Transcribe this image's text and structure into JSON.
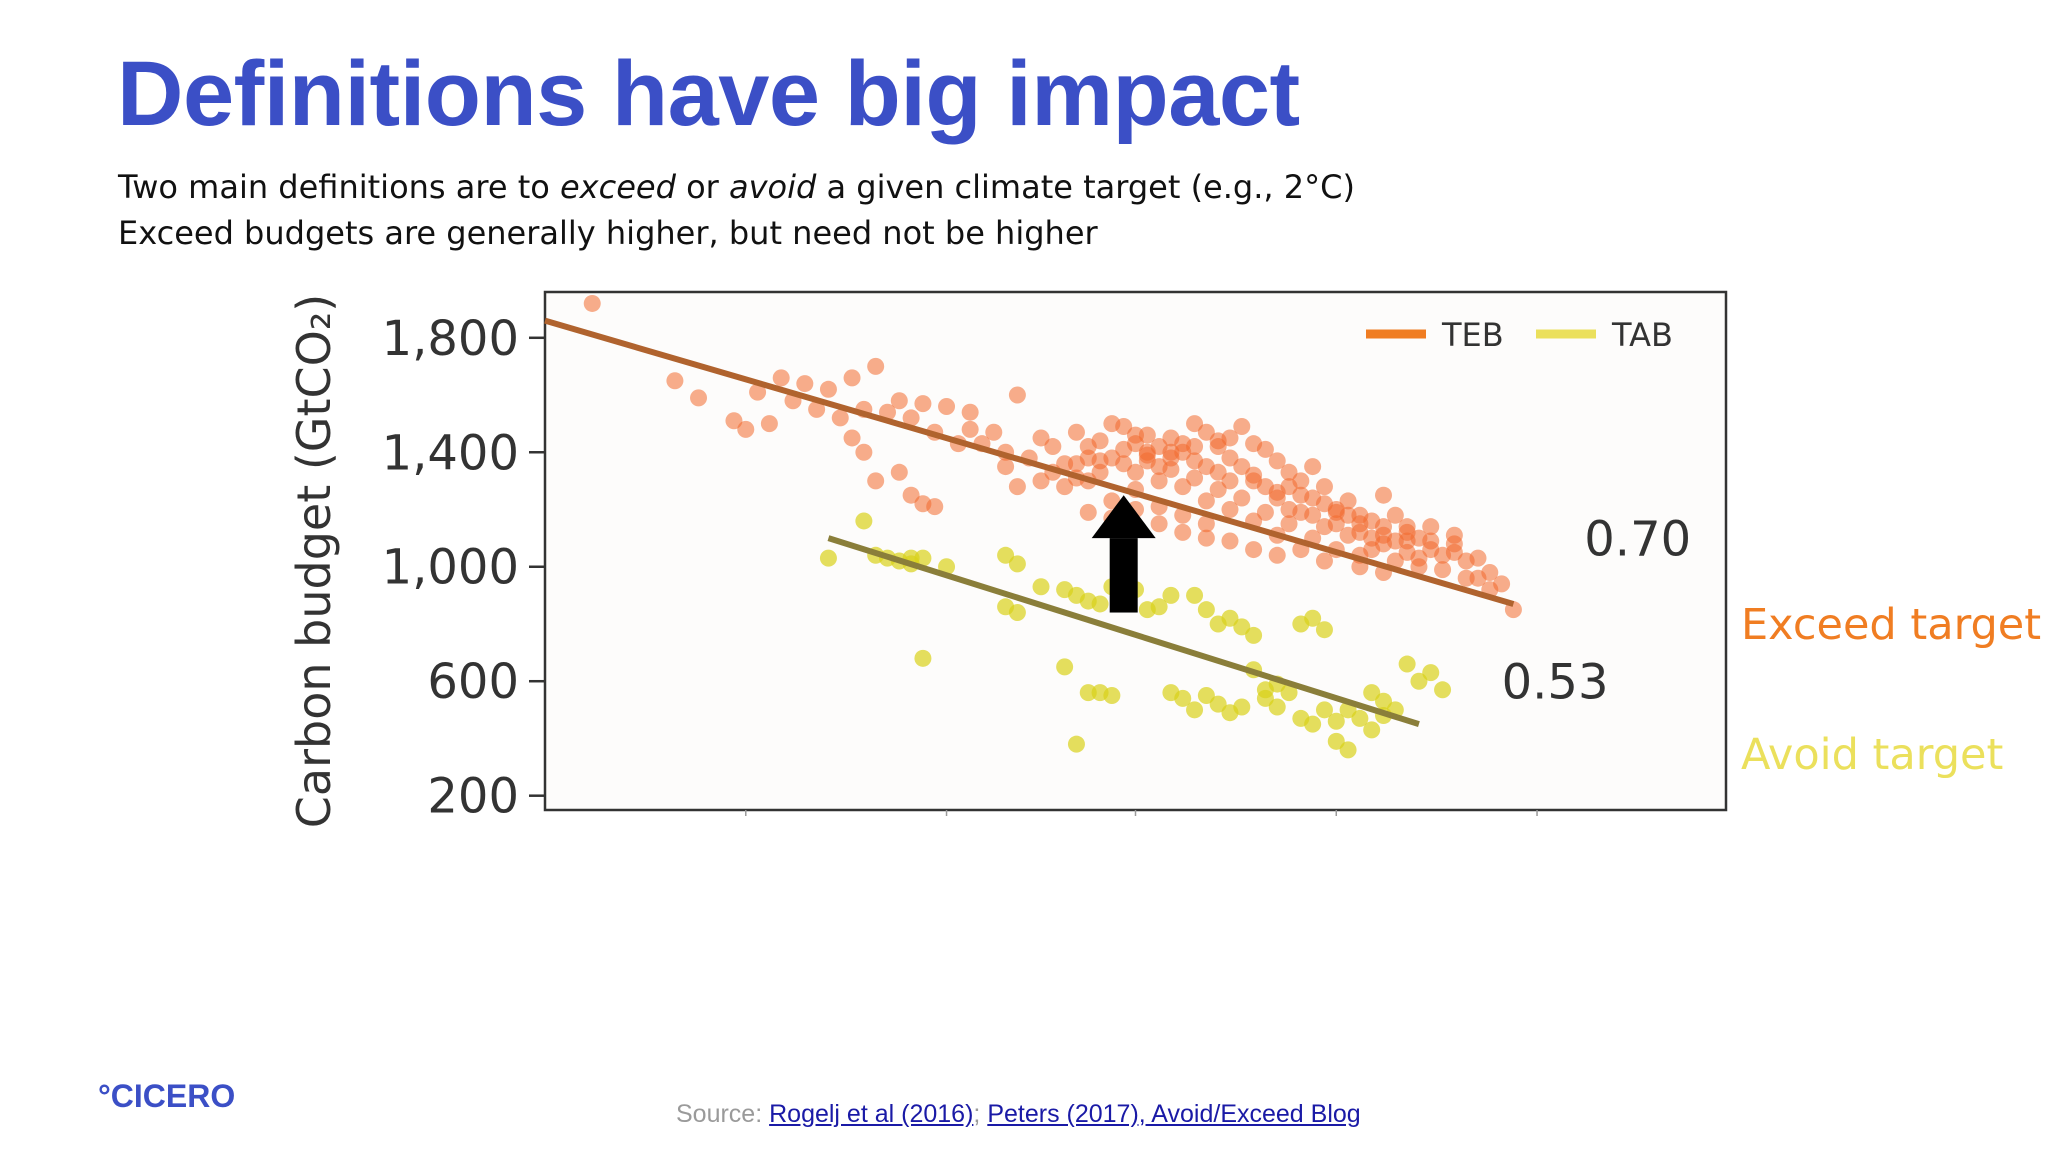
{
  "slide": {
    "title": "Definitions have big impact",
    "subtitle_line1": {
      "part1": "Two main definitions are to ",
      "em1": "exceed",
      "part2": " or ",
      "em2": "avoid",
      "part3": " a given climate target (e.g., 2°C)"
    },
    "subtitle_line2": "Exceed budgets are generally higher, but need not be higher",
    "label_exceed": "Exceed target",
    "label_avoid": "Avoid target",
    "logo": "°CICERO",
    "source_prefix": "Source: ",
    "source_link1": "Rogelj et al (2016)",
    "source_sep": "; ",
    "source_link2": "Peters (2017), Avoid/Exceed Blog"
  },
  "colors": {
    "title": "#3b4fc6",
    "teb": "#f07d22",
    "tab": "#ebe05c",
    "teb_points": "#f26a2e",
    "tab_points": "#d8d21a",
    "teb_fit": "#b0632e",
    "tab_fit": "#8a7e3a",
    "arrow": "#000000"
  },
  "chart_data": {
    "type": "scatter",
    "ylabel": "Carbon budget (GtCO₂)",
    "ylim": [
      150,
      1960
    ],
    "yticks": [
      "1,800",
      "1,400",
      "1,000",
      "600",
      "200"
    ],
    "ytick_values": [
      1800,
      1400,
      1000,
      600,
      200
    ],
    "xlim": [
      0,
      100
    ],
    "legend_position": "top-right",
    "annotations": [
      {
        "text": "0.70",
        "series": "TEB",
        "x": 88,
        "y": 1040
      },
      {
        "text": "0.53",
        "series": "TAB",
        "x": 81,
        "y": 540
      }
    ],
    "series": [
      {
        "name": "TEB",
        "fit": {
          "x": [
            0,
            82
          ],
          "y": [
            1860,
            870
          ]
        },
        "points": [
          [
            4,
            1920
          ],
          [
            11,
            1650
          ],
          [
            13,
            1590
          ],
          [
            18,
            1610
          ],
          [
            20,
            1660
          ],
          [
            22,
            1640
          ],
          [
            24,
            1620
          ],
          [
            26,
            1660
          ],
          [
            28,
            1700
          ],
          [
            30,
            1580
          ],
          [
            32,
            1570
          ],
          [
            34,
            1560
          ],
          [
            36,
            1540
          ],
          [
            40,
            1600
          ],
          [
            36,
            1480
          ],
          [
            38,
            1470
          ],
          [
            27,
            1550
          ],
          [
            29,
            1540
          ],
          [
            31,
            1520
          ],
          [
            23,
            1550
          ],
          [
            25,
            1520
          ],
          [
            21,
            1580
          ],
          [
            17,
            1480
          ],
          [
            19,
            1500
          ],
          [
            33,
            1470
          ],
          [
            35,
            1430
          ],
          [
            41,
            1380
          ],
          [
            43,
            1420
          ],
          [
            28,
            1300
          ],
          [
            30,
            1330
          ],
          [
            31,
            1250
          ],
          [
            32,
            1220
          ],
          [
            33,
            1210
          ],
          [
            26,
            1450
          ],
          [
            27,
            1400
          ],
          [
            16,
            1510
          ],
          [
            37,
            1430
          ],
          [
            39,
            1400
          ],
          [
            42,
            1450
          ],
          [
            44,
            1360
          ],
          [
            45,
            1360
          ],
          [
            46,
            1380
          ],
          [
            47,
            1370
          ],
          [
            48,
            1500
          ],
          [
            49,
            1490
          ],
          [
            50,
            1460
          ],
          [
            51,
            1400
          ],
          [
            52,
            1350
          ],
          [
            53,
            1380
          ],
          [
            54,
            1430
          ],
          [
            55,
            1500
          ],
          [
            56,
            1470
          ],
          [
            57,
            1420
          ],
          [
            58,
            1450
          ],
          [
            59,
            1490
          ],
          [
            60,
            1430
          ],
          [
            61,
            1410
          ],
          [
            62,
            1370
          ],
          [
            63,
            1330
          ],
          [
            64,
            1300
          ],
          [
            65,
            1350
          ],
          [
            66,
            1280
          ],
          [
            67,
            1200
          ],
          [
            68,
            1230
          ],
          [
            69,
            1120
          ],
          [
            70,
            1160
          ],
          [
            71,
            1250
          ],
          [
            72,
            1180
          ],
          [
            73,
            1140
          ],
          [
            74,
            1100
          ],
          [
            75,
            1060
          ],
          [
            76,
            1040
          ],
          [
            77,
            1080
          ],
          [
            78,
            1020
          ],
          [
            79,
            960
          ],
          [
            80,
            920
          ],
          [
            81,
            940
          ],
          [
            73,
            1090
          ],
          [
            71,
            1110
          ],
          [
            69,
            1040
          ],
          [
            67,
            1060
          ],
          [
            65,
            1100
          ],
          [
            63,
            1150
          ],
          [
            61,
            1190
          ],
          [
            59,
            1240
          ],
          [
            57,
            1270
          ],
          [
            55,
            1310
          ],
          [
            53,
            1340
          ],
          [
            51,
            1370
          ],
          [
            49,
            1410
          ],
          [
            47,
            1440
          ],
          [
            45,
            1470
          ],
          [
            44,
            1280
          ],
          [
            46,
            1300
          ],
          [
            48,
            1230
          ],
          [
            50,
            1270
          ],
          [
            52,
            1210
          ],
          [
            54,
            1180
          ],
          [
            56,
            1230
          ],
          [
            58,
            1300
          ],
          [
            60,
            1320
          ],
          [
            62,
            1260
          ],
          [
            64,
            1190
          ],
          [
            66,
            1140
          ],
          [
            68,
            1110
          ],
          [
            70,
            1060
          ],
          [
            72,
            1020
          ],
          [
            74,
            1000
          ],
          [
            76,
            990
          ],
          [
            78,
            960
          ],
          [
            80,
            980
          ],
          [
            82,
            850
          ],
          [
            75,
            1140
          ],
          [
            77,
            1110
          ],
          [
            79,
            1030
          ],
          [
            71,
            980
          ],
          [
            69,
            1000
          ],
          [
            66,
            1020
          ],
          [
            64,
            1060
          ],
          [
            62,
            1110
          ],
          [
            60,
            1160
          ],
          [
            58,
            1200
          ],
          [
            56,
            1150
          ],
          [
            54,
            1280
          ],
          [
            52,
            1300
          ],
          [
            50,
            1330
          ],
          [
            48,
            1380
          ],
          [
            46,
            1420
          ],
          [
            54,
            1400
          ],
          [
            55,
            1370
          ],
          [
            56,
            1350
          ],
          [
            57,
            1330
          ],
          [
            53,
            1450
          ],
          [
            52,
            1420
          ],
          [
            58,
            1380
          ],
          [
            59,
            1350
          ],
          [
            60,
            1300
          ],
          [
            61,
            1280
          ],
          [
            62,
            1240
          ],
          [
            63,
            1200
          ],
          [
            64,
            1250
          ],
          [
            65,
            1180
          ],
          [
            66,
            1220
          ],
          [
            67,
            1150
          ],
          [
            68,
            1180
          ],
          [
            69,
            1150
          ],
          [
            70,
            1100
          ],
          [
            71,
            1080
          ],
          [
            72,
            1090
          ],
          [
            73,
            1050
          ],
          [
            74,
            1030
          ],
          [
            50,
            1430
          ],
          [
            51,
            1460
          ],
          [
            49,
            1360
          ],
          [
            47,
            1330
          ],
          [
            45,
            1310
          ],
          [
            43,
            1330
          ],
          [
            42,
            1300
          ],
          [
            40,
            1280
          ],
          [
            39,
            1350
          ],
          [
            46,
            1190
          ],
          [
            48,
            1170
          ],
          [
            50,
            1200
          ],
          [
            52,
            1150
          ],
          [
            54,
            1120
          ],
          [
            56,
            1100
          ],
          [
            58,
            1090
          ],
          [
            60,
            1060
          ],
          [
            62,
            1040
          ],
          [
            57,
            1440
          ],
          [
            55,
            1420
          ],
          [
            53,
            1400
          ],
          [
            51,
            1390
          ],
          [
            63,
            1280
          ],
          [
            65,
            1240
          ],
          [
            67,
            1190
          ],
          [
            69,
            1180
          ],
          [
            71,
            1140
          ],
          [
            73,
            1120
          ],
          [
            75,
            1090
          ],
          [
            77,
            1050
          ]
        ]
      },
      {
        "name": "TAB",
        "fit": {
          "x": [
            24,
            74
          ],
          "y": [
            1100,
            450
          ]
        },
        "points": [
          [
            24,
            1030
          ],
          [
            27,
            1160
          ],
          [
            29,
            1030
          ],
          [
            31,
            1030
          ],
          [
            30,
            1020
          ],
          [
            32,
            1030
          ],
          [
            31,
            1010
          ],
          [
            28,
            1040
          ],
          [
            32,
            680
          ],
          [
            34,
            1000
          ],
          [
            39,
            1040
          ],
          [
            40,
            1010
          ],
          [
            39,
            860
          ],
          [
            40,
            840
          ],
          [
            42,
            930
          ],
          [
            44,
            920
          ],
          [
            45,
            900
          ],
          [
            46,
            880
          ],
          [
            47,
            870
          ],
          [
            48,
            930
          ],
          [
            49,
            890
          ],
          [
            50,
            920
          ],
          [
            51,
            850
          ],
          [
            52,
            860
          ],
          [
            53,
            900
          ],
          [
            44,
            650
          ],
          [
            46,
            560
          ],
          [
            47,
            560
          ],
          [
            48,
            550
          ],
          [
            45,
            380
          ],
          [
            55,
            900
          ],
          [
            56,
            850
          ],
          [
            57,
            800
          ],
          [
            58,
            820
          ],
          [
            59,
            790
          ],
          [
            60,
            760
          ],
          [
            53,
            560
          ],
          [
            54,
            540
          ],
          [
            55,
            500
          ],
          [
            56,
            550
          ],
          [
            57,
            520
          ],
          [
            58,
            490
          ],
          [
            59,
            510
          ],
          [
            61,
            540
          ],
          [
            62,
            510
          ],
          [
            63,
            560
          ],
          [
            64,
            470
          ],
          [
            65,
            450
          ],
          [
            66,
            500
          ],
          [
            67,
            460
          ],
          [
            68,
            500
          ],
          [
            69,
            470
          ],
          [
            70,
            560
          ],
          [
            71,
            530
          ],
          [
            72,
            500
          ],
          [
            73,
            660
          ],
          [
            74,
            600
          ],
          [
            75,
            630
          ],
          [
            76,
            570
          ],
          [
            64,
            800
          ],
          [
            65,
            820
          ],
          [
            66,
            780
          ],
          [
            60,
            640
          ],
          [
            61,
            570
          ],
          [
            62,
            590
          ],
          [
            67,
            390
          ],
          [
            68,
            360
          ],
          [
            70,
            430
          ],
          [
            71,
            480
          ]
        ]
      }
    ]
  }
}
